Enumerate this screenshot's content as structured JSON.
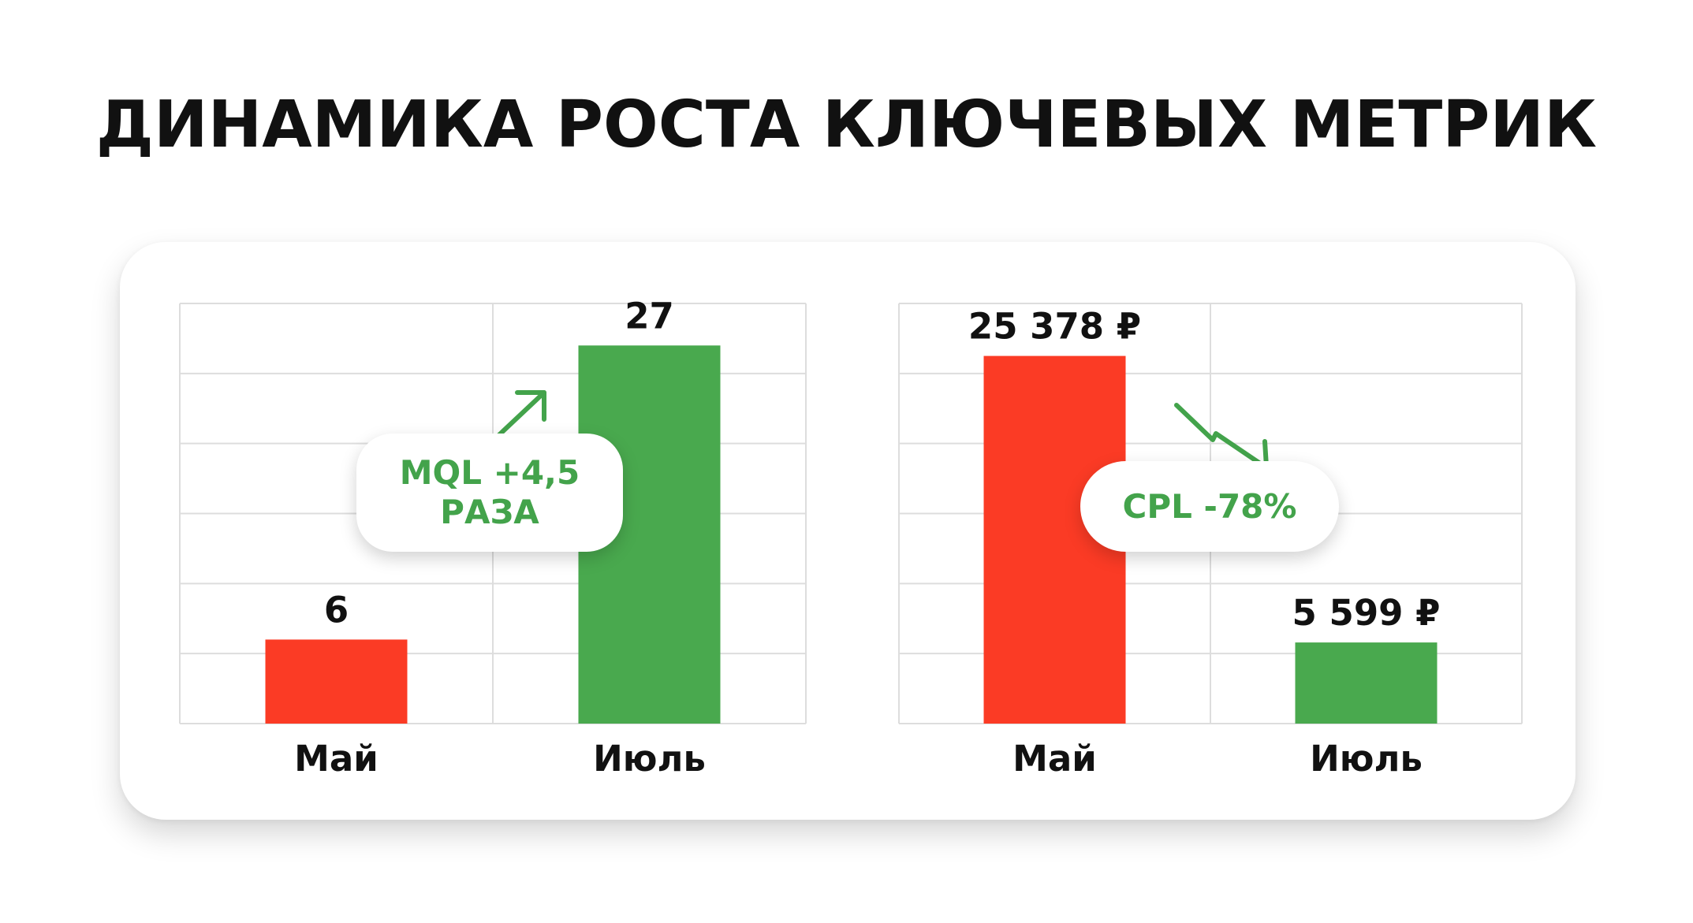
{
  "title": "ДИНАМИКА РОСТА КЛЮЧЕВЫХ МЕТРИК",
  "colors": {
    "red": "#fb3b25",
    "green": "#49a94e",
    "label_green": "#43a34b",
    "grid": "#dddddd"
  },
  "chart_data": [
    {
      "type": "bar",
      "categories": [
        "Май",
        "Июль"
      ],
      "values": [
        6,
        27
      ],
      "value_labels": [
        "6",
        "27"
      ],
      "bar_colors": [
        "#fb3b25",
        "#49a94e"
      ],
      "ylim": [
        0,
        30
      ],
      "grid": true,
      "annotation": "MQL +4,5 РАЗА",
      "annotation_icon": "trend-up-arrow-icon"
    },
    {
      "type": "bar",
      "categories": [
        "Май",
        "Июль"
      ],
      "values": [
        25378,
        5599
      ],
      "value_labels": [
        "25 378 ₽",
        "5 599 ₽"
      ],
      "bar_colors": [
        "#fb3b25",
        "#49a94e"
      ],
      "ylim": [
        0,
        29000
      ],
      "grid": true,
      "annotation": "CPL -78%",
      "annotation_icon": "trend-down-arrow-icon"
    }
  ]
}
